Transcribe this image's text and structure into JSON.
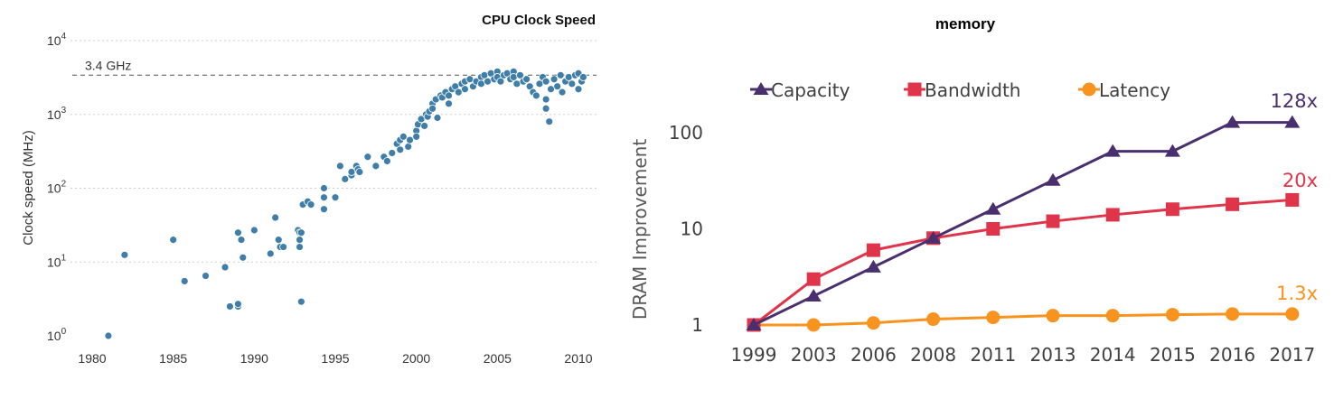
{
  "chart_data": [
    {
      "type": "scatter",
      "title": "CPU Clock Speed",
      "xlabel": "",
      "ylabel": "Clock speed (MHz)",
      "xlim": [
        1980,
        2010
      ],
      "ylim": [
        1,
        10000
      ],
      "yscale": "log",
      "grid": true,
      "x_ticks": [
        "1980",
        "1985",
        "1990",
        "1995",
        "2000",
        "2005",
        "2010"
      ],
      "y_ticks": [
        {
          "base": "10",
          "exp": "0"
        },
        {
          "base": "10",
          "exp": "1"
        },
        {
          "base": "10",
          "exp": "2"
        },
        {
          "base": "10",
          "exp": "3"
        },
        {
          "base": "10",
          "exp": "4"
        }
      ],
      "annotation": {
        "label": "3.4 GHz",
        "value": 3400
      },
      "marker_color": "#3f7ea8",
      "points": [
        [
          1981.0,
          1.0
        ],
        [
          1982.0,
          12.5
        ],
        [
          1985.0,
          20
        ],
        [
          1985.7,
          5.5
        ],
        [
          1987.0,
          6.5
        ],
        [
          1988.2,
          8.5
        ],
        [
          1988.5,
          2.5
        ],
        [
          1989.0,
          2.5
        ],
        [
          1989.0,
          2.7
        ],
        [
          1989.0,
          25
        ],
        [
          1989.2,
          20
        ],
        [
          1989.3,
          11.5
        ],
        [
          1990.0,
          27
        ],
        [
          1991.0,
          13
        ],
        [
          1991.3,
          40
        ],
        [
          1991.5,
          20
        ],
        [
          1991.6,
          16
        ],
        [
          1991.8,
          16
        ],
        [
          1992.7,
          27
        ],
        [
          1992.8,
          25
        ],
        [
          1992.8,
          20
        ],
        [
          1992.8,
          16
        ],
        [
          1992.9,
          25
        ],
        [
          1992.9,
          2.9
        ],
        [
          1993.0,
          60
        ],
        [
          1993.3,
          66
        ],
        [
          1993.5,
          60
        ],
        [
          1994.3,
          100
        ],
        [
          1994.3,
          75
        ],
        [
          1994.3,
          52
        ],
        [
          1995.0,
          75
        ],
        [
          1995.3,
          200
        ],
        [
          1995.6,
          133
        ],
        [
          1996.0,
          150
        ],
        [
          1996.0,
          166
        ],
        [
          1996.3,
          200
        ],
        [
          1996.4,
          180
        ],
        [
          1996.5,
          166
        ],
        [
          1997.0,
          266
        ],
        [
          1997.5,
          200
        ],
        [
          1998.0,
          266
        ],
        [
          1998.2,
          233
        ],
        [
          1998.5,
          300
        ],
        [
          1998.8,
          400
        ],
        [
          1999.0,
          450
        ],
        [
          1999.0,
          333
        ],
        [
          1999.2,
          500
        ],
        [
          1999.5,
          366
        ],
        [
          1999.6,
          450
        ],
        [
          2000.0,
          600
        ],
        [
          2000.0,
          500
        ],
        [
          2000.1,
          733
        ],
        [
          2000.3,
          866
        ],
        [
          2000.5,
          700
        ],
        [
          2000.6,
          1000
        ],
        [
          2000.7,
          933
        ],
        [
          2000.8,
          1100
        ],
        [
          2001.0,
          1400
        ],
        [
          2001.0,
          1200
        ],
        [
          2001.2,
          1600
        ],
        [
          2001.3,
          900
        ],
        [
          2001.5,
          1800
        ],
        [
          2001.6,
          1700
        ],
        [
          2001.8,
          2000
        ],
        [
          2002.0,
          1400
        ],
        [
          2002.0,
          1800
        ],
        [
          2002.2,
          2200
        ],
        [
          2002.4,
          2400
        ],
        [
          2002.6,
          2000
        ],
        [
          2002.8,
          2600
        ],
        [
          2003.0,
          2800
        ],
        [
          2003.0,
          2200
        ],
        [
          2003.3,
          3000
        ],
        [
          2003.5,
          2400
        ],
        [
          2003.7,
          2800
        ],
        [
          2004.0,
          3200
        ],
        [
          2004.0,
          2600
        ],
        [
          2004.2,
          3400
        ],
        [
          2004.4,
          2800
        ],
        [
          2004.6,
          3600
        ],
        [
          2004.8,
          3000
        ],
        [
          2005.0,
          3800
        ],
        [
          2005.0,
          3200
        ],
        [
          2005.2,
          2800
        ],
        [
          2005.4,
          3400
        ],
        [
          2005.6,
          3600
        ],
        [
          2005.8,
          3000
        ],
        [
          2006.0,
          3800
        ],
        [
          2006.0,
          3200
        ],
        [
          2006.2,
          2600
        ],
        [
          2006.4,
          3400
        ],
        [
          2006.6,
          2800
        ],
        [
          2006.8,
          3000
        ],
        [
          2007.0,
          2400
        ],
        [
          2007.2,
          2000
        ],
        [
          2007.4,
          1800
        ],
        [
          2007.6,
          2600
        ],
        [
          2007.8,
          3200
        ],
        [
          2008.0,
          2800
        ],
        [
          2008.0,
          1600
        ],
        [
          2008.0,
          1200
        ],
        [
          2008.2,
          800
        ],
        [
          2008.3,
          2200
        ],
        [
          2008.5,
          3000
        ],
        [
          2008.7,
          2400
        ],
        [
          2008.9,
          3400
        ],
        [
          2009.0,
          2000
        ],
        [
          2009.2,
          2800
        ],
        [
          2009.4,
          3200
        ],
        [
          2009.6,
          2600
        ],
        [
          2009.8,
          3400
        ],
        [
          2010.0,
          2200
        ],
        [
          2010.0,
          3600
        ],
        [
          2010.2,
          2800
        ],
        [
          2010.3,
          3200
        ]
      ]
    },
    {
      "type": "line",
      "title": "memory",
      "xlabel": "",
      "ylabel": "DRAM Improvement",
      "yscale": "log",
      "ylim": [
        0.72,
        220
      ],
      "y_ticks": [
        "1",
        "10",
        "100"
      ],
      "categories": [
        "1999",
        "2003",
        "2006",
        "2008",
        "2011",
        "2013",
        "2014",
        "2015",
        "2016",
        "2017"
      ],
      "legend_position": "top",
      "series": [
        {
          "name": "Capacity",
          "color": "#4a2f6e",
          "marker": "triangle",
          "values": [
            1,
            2,
            4,
            8,
            16,
            32,
            64,
            64,
            128,
            128
          ],
          "end_label": "128x"
        },
        {
          "name": "Bandwidth",
          "color": "#e0344a",
          "marker": "square",
          "values": [
            1,
            3,
            6,
            8,
            10,
            12,
            14,
            16,
            18,
            20
          ],
          "end_label": "20x"
        },
        {
          "name": "Latency",
          "color": "#f7931e",
          "marker": "circle",
          "values": [
            1,
            1,
            1.05,
            1.15,
            1.2,
            1.25,
            1.25,
            1.28,
            1.3,
            1.3
          ],
          "end_label": "1.3x"
        }
      ]
    }
  ]
}
